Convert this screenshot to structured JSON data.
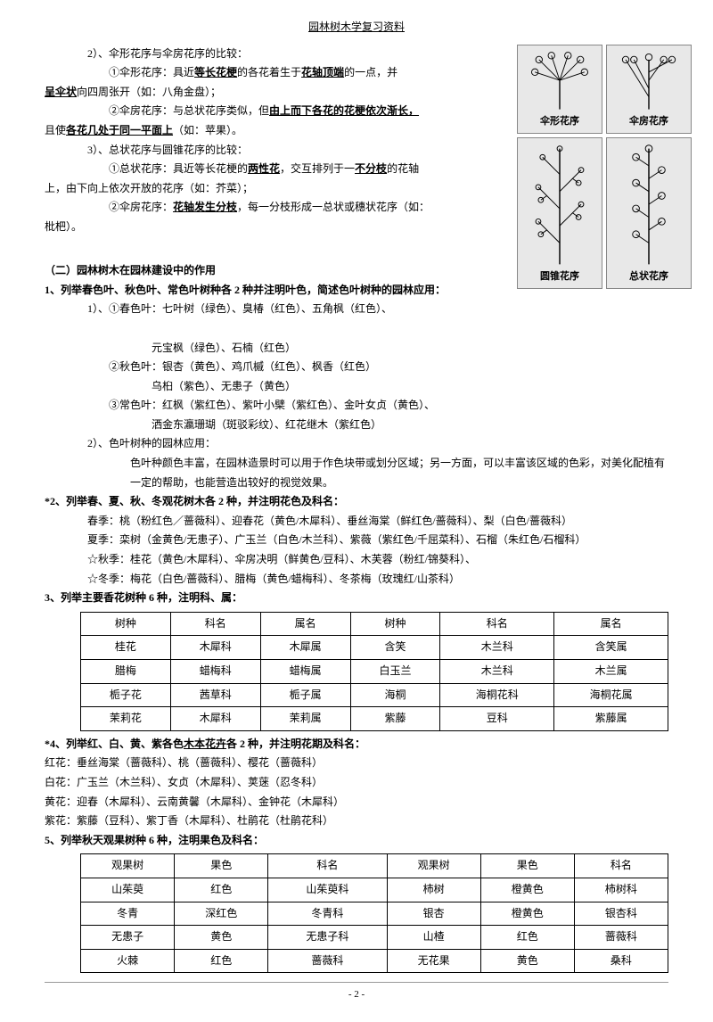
{
  "header": "园林树木学复习资料",
  "p2_label": "2）、伞形花序与伞房花序的比较：",
  "p2_1a": "①伞形花序：具近",
  "p2_1b": "等长花梗",
  "p2_1c": "的各花着生于",
  "p2_1d": "花轴顶端",
  "p2_1e": "的一点，并",
  "p2_2a": "呈伞状",
  "p2_2b": "向四周张开（如：八角金盘）；",
  "p2_3a": "②伞房花序：与总状花序类似，但",
  "p2_3b": "由上而下各花的花梗依次渐长，",
  "p2_4a": "且使",
  "p2_4b": "各花几处于同一平面上",
  "p2_4c": "（如：苹果）。",
  "p3_label": "3）、总状花序与圆锥花序的比较：",
  "p3_1a": "①总状花序：具近等长花梗的",
  "p3_1b": "两性花",
  "p3_1c": "，交互排列于一",
  "p3_1d": "不分枝",
  "p3_1e": "的花轴",
  "p3_2": "上，由下向上依次开放的花序（如：芥菜）；",
  "p3_3a": "②伞房花序：",
  "p3_3b": "花轴发生分枝",
  "p3_3c": "，每一分枝形成一总状或穗状花序（如：",
  "p3_4": "枇杷）。",
  "sec2_title": "（二）园林树木在园林建设中的作用",
  "q1_title": "1、列举春色叶、秋色叶、常色叶树种各 2 种并注明叶色，简述色叶树种的园林应用：",
  "q1_1": "1）、①春色叶：七叶树（绿色）、臭椿（红色）、五角枫（红色）、",
  "q1_1b": "元宝枫（绿色）、石楠（红色）",
  "q1_2": "②秋色叶：银杏（黄色）、鸡爪槭（红色）、枫香（红色）",
  "q1_2b": "乌桕（紫色）、无患子（黄色）",
  "q1_3": "③常色叶：红枫（紫红色）、紫叶小檗（紫红色）、金叶女贞（黄色）、",
  "q1_3b": "洒金东瀛珊瑚（斑驳彩纹）、红花继木（紫红色）",
  "q1_4": "2）、色叶树种的园林应用：",
  "q1_5": "色叶种颜色丰富，在园林造景时可以用于作色块带或划分区域；另一方面，可以丰富该区域的色彩，对美化配植有一定的帮助，也能营造出较好的视觉效果。",
  "q2_title": "*2、列举春、夏、秋、冬观花树木各 2 种，并注明花色及科名：",
  "q2_1": "春季：桃（粉红色／蔷薇科）、迎春花（黄色/木犀科）、垂丝海棠（鲜红色/蔷薇科）、梨（白色/蔷薇科）",
  "q2_2": "夏季：栾树（金黄色/无患子）、广玉兰（白色/木兰科）、紫薇（紫红色/千屈菜科）、石榴（朱红色/石榴科）",
  "q2_3": "☆秋季：桂花（黄色/木犀科）、伞房决明（鲜黄色/豆科）、木芙蓉（粉红/锦葵科）、",
  "q2_4": "☆冬季：梅花（白色/蔷薇科）、腊梅（黄色/蜡梅科）、冬茶梅（玫瑰红/山茶科）",
  "q3_title": "3、列举主要香花树种 6 种，注明科、属：",
  "table1": {
    "columns": [
      "树种",
      "科名",
      "属名",
      "树种",
      "科名",
      "属名"
    ],
    "rows": [
      [
        "桂花",
        "木犀科",
        "木犀属",
        "含笑",
        "木兰科",
        "含笑属"
      ],
      [
        "腊梅",
        "蜡梅科",
        "蜡梅属",
        "白玉兰",
        "木兰科",
        "木兰属"
      ],
      [
        "栀子花",
        "茜草科",
        "栀子属",
        "海桐",
        "海桐花科",
        "海桐花属"
      ],
      [
        "茉莉花",
        "木犀科",
        "茉莉属",
        "紫藤",
        "豆科",
        "紫藤属"
      ]
    ]
  },
  "q4_title": "*4、列举红、白、黄、紫各色",
  "q4_titleb": "木本花卉",
  "q4_titlec": "各 2 种，并注明花期及科名：",
  "q4_1": "红花：垂丝海棠（蔷薇科）、桃（蔷薇科）、樱花（蔷薇科）",
  "q4_2": "白花：广玉兰（木兰科）、女贞（木犀科）、荚蒾（忍冬科）",
  "q4_3": "黄花：迎春（木犀科）、云南黄馨（木犀科）、金钟花（木犀科）",
  "q4_4": "紫花：紫藤（豆科）、紫丁香（木犀科）、杜鹃花（杜鹃花科）",
  "q5_title": "5、列举秋天观果树种 6 种，注明果色及科名：",
  "table2": {
    "columns": [
      "观果树",
      "果色",
      "科名",
      "观果树",
      "果色",
      "科名"
    ],
    "rows": [
      [
        "山茱萸",
        "红色",
        "山茱萸科",
        "柿树",
        "橙黄色",
        "柿树科"
      ],
      [
        "冬青",
        "深红色",
        "冬青科",
        "银杏",
        "橙黄色",
        "银杏科"
      ],
      [
        "无患子",
        "黄色",
        "无患子科",
        "山楂",
        "红色",
        "蔷薇科"
      ],
      [
        "火棘",
        "红色",
        "蔷薇科",
        "无花果",
        "黄色",
        "桑科"
      ]
    ]
  },
  "fig_labels": {
    "a": "伞形花序",
    "b": "伞房花序",
    "c": "圆锥花序",
    "d": "总状花序"
  },
  "footer": "- 2 -"
}
